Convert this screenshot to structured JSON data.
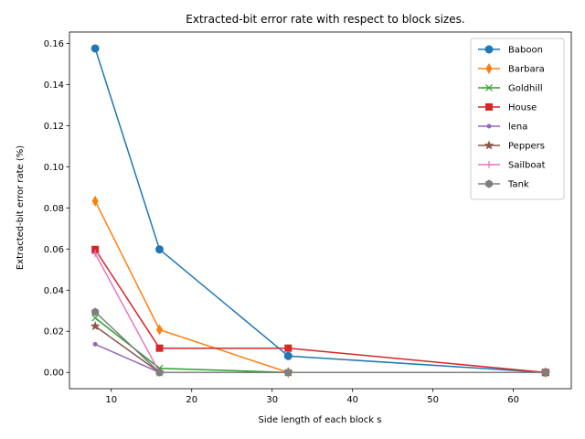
{
  "chart_data": {
    "type": "line",
    "title": "Extracted-bit error rate with respect to block sizes.",
    "xlabel": "Side length of each block s",
    "ylabel": "Extracted-bit error rate (%)",
    "x": [
      8,
      16,
      32,
      64
    ],
    "xlim": [
      4.8,
      67.2
    ],
    "ylim": [
      -0.0079,
      0.1655
    ],
    "xticks": [
      10,
      20,
      30,
      40,
      50,
      60
    ],
    "yticks": [
      0.0,
      0.02,
      0.04,
      0.06,
      0.08,
      0.1,
      0.12,
      0.14,
      0.16
    ],
    "ytick_labels": [
      "0.00",
      "0.02",
      "0.04",
      "0.06",
      "0.08",
      "0.10",
      "0.12",
      "0.14",
      "0.16"
    ],
    "grid": false,
    "legend_position": "top-right",
    "series": [
      {
        "name": "Baboon",
        "color": "#1f77b4",
        "marker": "circle",
        "values": [
          0.1575,
          0.0598,
          0.008,
          0.0
        ]
      },
      {
        "name": "Barbara",
        "color": "#ff7f0e",
        "marker": "thin-diamond",
        "values": [
          0.0833,
          0.0208,
          0.0,
          0.0
        ]
      },
      {
        "name": "Goldhill",
        "color": "#2ca02c",
        "marker": "x",
        "values": [
          0.0265,
          0.002,
          0.0,
          0.0
        ]
      },
      {
        "name": "House",
        "color": "#d62728",
        "marker": "square",
        "values": [
          0.0598,
          0.0118,
          0.0118,
          0.0
        ]
      },
      {
        "name": "lena",
        "color": "#9467bd",
        "marker": "point",
        "values": [
          0.0137,
          0.0,
          0.0,
          0.0
        ]
      },
      {
        "name": "Peppers",
        "color": "#8c564b",
        "marker": "star",
        "values": [
          0.0225,
          0.0,
          0.0,
          0.0
        ]
      },
      {
        "name": "Sailboat",
        "color": "#e377c2",
        "marker": "plus",
        "values": [
          0.0578,
          0.0,
          0.0,
          0.0
        ]
      },
      {
        "name": "Tank",
        "color": "#7f7f7f",
        "marker": "hexagon",
        "values": [
          0.0294,
          0.0,
          0.0,
          0.0
        ]
      }
    ]
  }
}
